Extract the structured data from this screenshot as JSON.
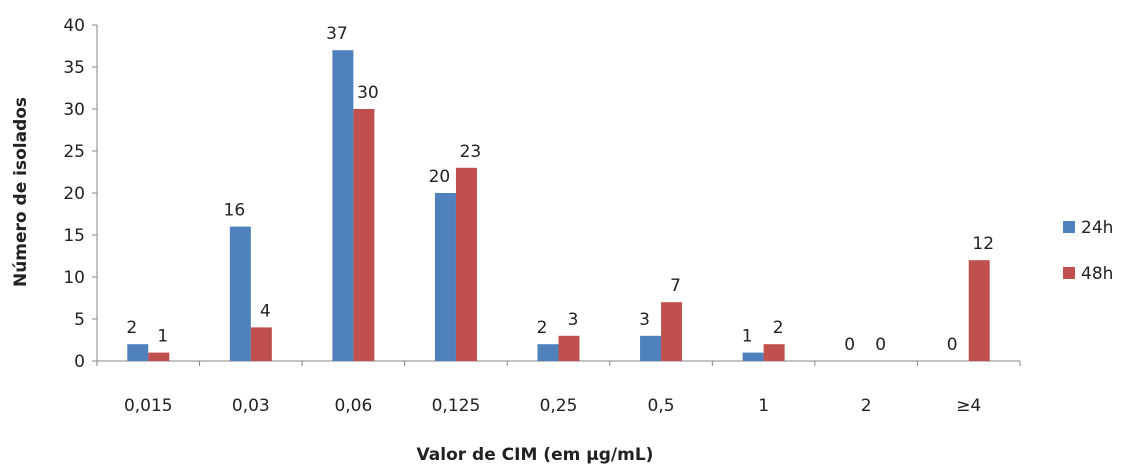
{
  "chart_data": {
    "type": "bar",
    "title": "",
    "xlabel": "Valor de CIM (em µg/mL)",
    "ylabel": "Número de isolados",
    "categories": [
      "0,015",
      "0,03",
      "0,06",
      "0,125",
      "0,25",
      "0,5",
      "1",
      "2",
      "≥4"
    ],
    "ylim": [
      0,
      40
    ],
    "yticks": [
      0,
      5,
      10,
      15,
      20,
      25,
      30,
      35,
      40
    ],
    "grid": false,
    "legend_position": "right",
    "series": [
      {
        "name": "24h",
        "color": "#4F81BD",
        "values": [
          2,
          16,
          37,
          20,
          2,
          3,
          1,
          0,
          0
        ]
      },
      {
        "name": "48h",
        "color": "#C0504D",
        "values": [
          1,
          4,
          30,
          23,
          3,
          7,
          2,
          0,
          12
        ]
      }
    ]
  }
}
